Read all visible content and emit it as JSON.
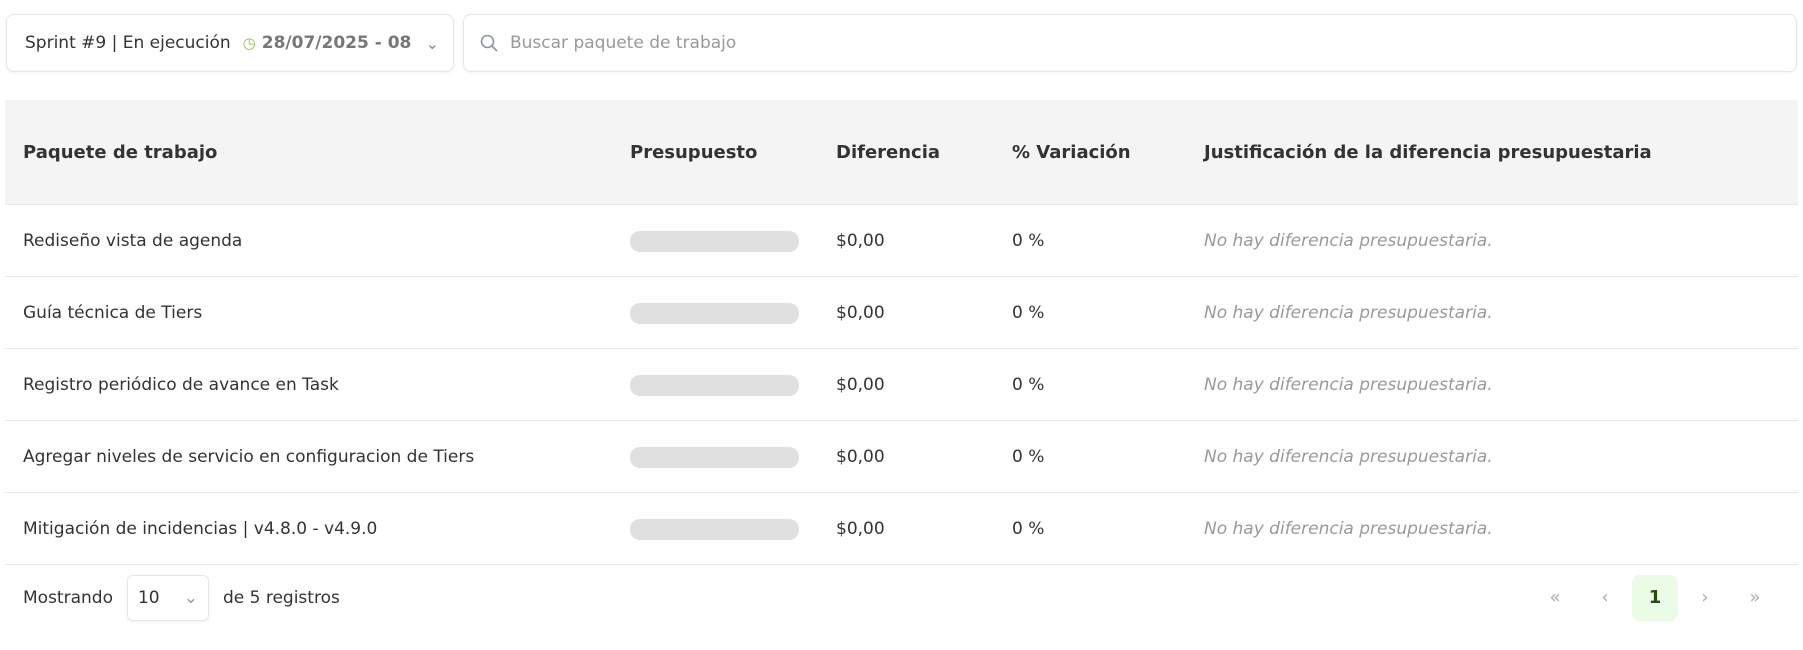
{
  "sprint_selector": {
    "label": "Sprint #9 | En ejecución",
    "date": "28/07/2025 - 08",
    "icon": "clock-icon",
    "accent": "#8bc34a"
  },
  "search": {
    "placeholder": "Buscar paquete de trabajo",
    "icon": "search-icon"
  },
  "table": {
    "columns": [
      "Paquete de trabajo",
      "Presupuesto",
      "Diferencia",
      "% Variación",
      "Justificación de la diferencia presupuestaria"
    ],
    "rows": [
      {
        "name": "Rediseño vista de agenda",
        "difference": "$0,00",
        "variation": "0 %",
        "justification": "No hay diferencia presupuestaria."
      },
      {
        "name": "Guía técnica de Tiers",
        "difference": "$0,00",
        "variation": "0 %",
        "justification": "No hay diferencia presupuestaria."
      },
      {
        "name": "Registro periódico de avance en Task",
        "difference": "$0,00",
        "variation": "0 %",
        "justification": "No hay diferencia presupuestaria."
      },
      {
        "name": "Agregar niveles de servicio en configuracion de Tiers",
        "difference": "$0,00",
        "variation": "0 %",
        "justification": "No hay diferencia presupuestaria."
      },
      {
        "name": "Mitigación de incidencias | v4.8.0 - v4.9.0",
        "difference": "$0,00",
        "variation": "0 %",
        "justification": "No hay diferencia presupuestaria."
      }
    ]
  },
  "footer": {
    "showing": "Mostrando",
    "page_size": "10",
    "records": "de 5 registros",
    "first": "«",
    "prev": "‹",
    "current_page": "1",
    "next": "›",
    "last": "»"
  }
}
